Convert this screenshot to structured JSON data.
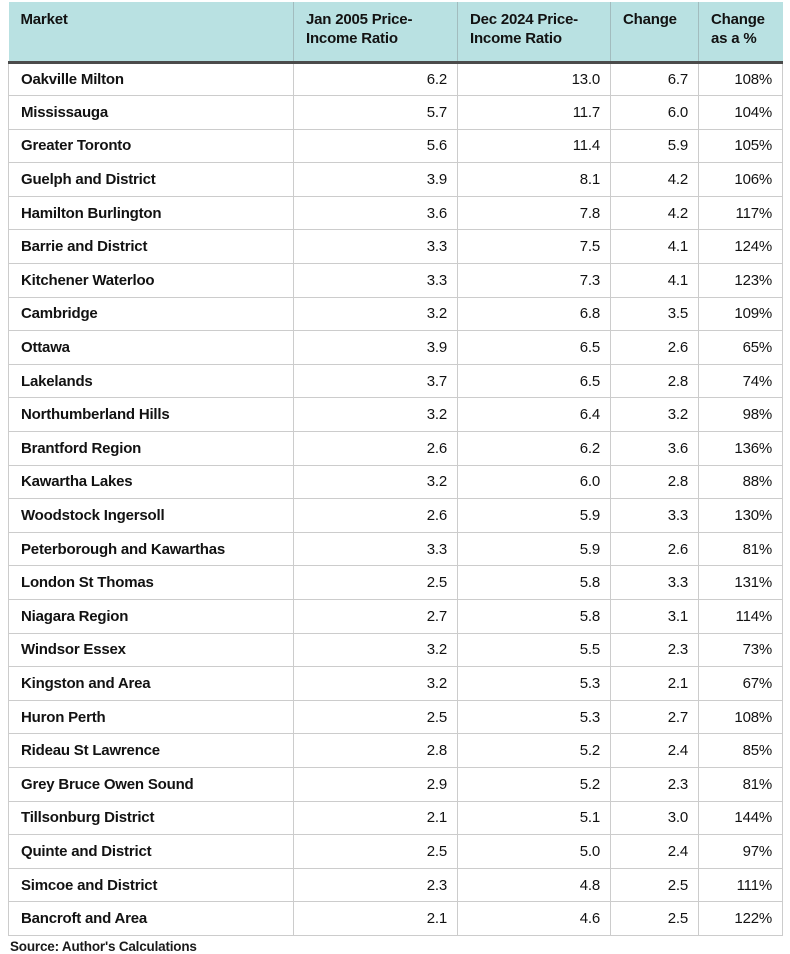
{
  "chart_data": {
    "type": "table",
    "title": "",
    "columns": [
      "Market",
      "Jan 2005 Price-Income Ratio",
      "Dec 2024 Price-Income Ratio",
      "Change",
      "Change as a %"
    ],
    "rows": [
      [
        "Oakville Milton",
        "6.2",
        "13.0",
        "6.7",
        "108%"
      ],
      [
        "Mississauga",
        "5.7",
        "11.7",
        "6.0",
        "104%"
      ],
      [
        "Greater Toronto",
        "5.6",
        "11.4",
        "5.9",
        "105%"
      ],
      [
        "Guelph and District",
        "3.9",
        "8.1",
        "4.2",
        "106%"
      ],
      [
        "Hamilton Burlington",
        "3.6",
        "7.8",
        "4.2",
        "117%"
      ],
      [
        "Barrie and District",
        "3.3",
        "7.5",
        "4.1",
        "124%"
      ],
      [
        "Kitchener Waterloo",
        "3.3",
        "7.3",
        "4.1",
        "123%"
      ],
      [
        "Cambridge",
        "3.2",
        "6.8",
        "3.5",
        "109%"
      ],
      [
        "Ottawa",
        "3.9",
        "6.5",
        "2.6",
        "65%"
      ],
      [
        "Lakelands",
        "3.7",
        "6.5",
        "2.8",
        "74%"
      ],
      [
        "Northumberland Hills",
        "3.2",
        "6.4",
        "3.2",
        "98%"
      ],
      [
        "Brantford Region",
        "2.6",
        "6.2",
        "3.6",
        "136%"
      ],
      [
        "Kawartha Lakes",
        "3.2",
        "6.0",
        "2.8",
        "88%"
      ],
      [
        "Woodstock Ingersoll",
        "2.6",
        "5.9",
        "3.3",
        "130%"
      ],
      [
        "Peterborough and Kawarthas",
        "3.3",
        "5.9",
        "2.6",
        "81%"
      ],
      [
        "London St Thomas",
        "2.5",
        "5.8",
        "3.3",
        "131%"
      ],
      [
        "Niagara Region",
        "2.7",
        "5.8",
        "3.1",
        "114%"
      ],
      [
        "Windsor Essex",
        "3.2",
        "5.5",
        "2.3",
        "73%"
      ],
      [
        "Kingston and Area",
        "3.2",
        "5.3",
        "2.1",
        "67%"
      ],
      [
        "Huron Perth",
        "2.5",
        "5.3",
        "2.7",
        "108%"
      ],
      [
        "Rideau St Lawrence",
        "2.8",
        "5.2",
        "2.4",
        "85%"
      ],
      [
        "Grey Bruce Owen Sound",
        "2.9",
        "5.2",
        "2.3",
        "81%"
      ],
      [
        "Tillsonburg District",
        "2.1",
        "5.1",
        "3.0",
        "144%"
      ],
      [
        "Quinte and District",
        "2.5",
        "5.0",
        "2.4",
        "97%"
      ],
      [
        "Simcoe and District",
        "2.3",
        "4.8",
        "2.5",
        "111%"
      ],
      [
        "Bancroft and Area",
        "2.1",
        "4.6",
        "2.5",
        "122%"
      ]
    ]
  },
  "footer": {
    "source_label": "Source: Author's Calculations"
  },
  "colors": {
    "header_bg": "#b9e1e2",
    "header_divider": "#a2bcbe",
    "header_bottom_border": "#4b4b4b",
    "row_border": "#cccccc",
    "text": "#121212"
  }
}
